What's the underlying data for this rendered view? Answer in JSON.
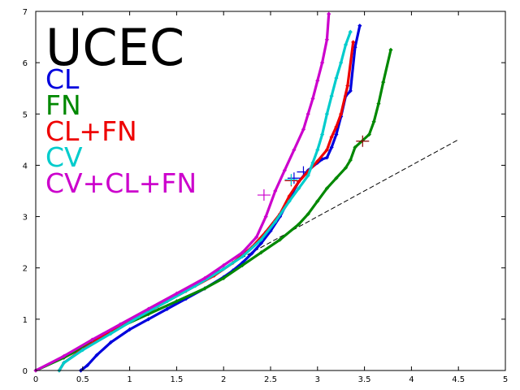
{
  "chart_data": {
    "type": "scatter",
    "title": "UCEC",
    "xlabel": "",
    "ylabel": "",
    "xlim": [
      0,
      5
    ],
    "ylim": [
      0,
      7
    ],
    "grid": false,
    "legend_position": "top-left",
    "x_ticks": [
      "0",
      "0.5",
      "1",
      "1.5",
      "2",
      "2.5",
      "3",
      "3.5",
      "4",
      "4.5",
      "5"
    ],
    "y_ticks": [
      "0",
      "1",
      "2",
      "3",
      "4",
      "5",
      "6",
      "7"
    ],
    "reference_line": {
      "x": [
        0,
        4.5
      ],
      "y": [
        0,
        4.5
      ],
      "color": "#000000",
      "style": "dashed"
    },
    "series": [
      {
        "name": "CL",
        "color": "#0000dd",
        "points": [
          [
            0.48,
            0
          ],
          [
            0.55,
            0.1
          ],
          [
            0.65,
            0.3
          ],
          [
            0.8,
            0.55
          ],
          [
            1.0,
            0.8
          ],
          [
            1.2,
            1.0
          ],
          [
            1.4,
            1.2
          ],
          [
            1.6,
            1.4
          ],
          [
            1.8,
            1.6
          ],
          [
            2.0,
            1.82
          ],
          [
            2.1,
            1.95
          ],
          [
            2.2,
            2.1
          ],
          [
            2.3,
            2.28
          ],
          [
            2.4,
            2.48
          ],
          [
            2.5,
            2.72
          ],
          [
            2.6,
            3.0
          ],
          [
            2.7,
            3.35
          ],
          [
            2.8,
            3.68
          ],
          [
            2.9,
            3.9
          ],
          [
            3.0,
            4.05
          ],
          [
            3.05,
            4.12
          ],
          [
            3.1,
            4.15
          ],
          [
            3.15,
            4.35
          ],
          [
            3.2,
            4.6
          ],
          [
            3.25,
            4.95
          ],
          [
            3.3,
            5.35
          ],
          [
            3.35,
            5.45
          ],
          [
            3.4,
            6.3
          ],
          [
            3.45,
            6.72
          ]
        ],
        "markers": [
          [
            2.75,
            3.75
          ],
          [
            2.85,
            3.87
          ]
        ]
      },
      {
        "name": "FN",
        "color": "#008800",
        "points": [
          [
            0,
            0
          ],
          [
            0.3,
            0.25
          ],
          [
            0.6,
            0.55
          ],
          [
            0.9,
            0.85
          ],
          [
            1.2,
            1.1
          ],
          [
            1.5,
            1.35
          ],
          [
            1.8,
            1.6
          ],
          [
            2.0,
            1.8
          ],
          [
            2.2,
            2.05
          ],
          [
            2.4,
            2.3
          ],
          [
            2.6,
            2.55
          ],
          [
            2.8,
            2.85
          ],
          [
            2.9,
            3.05
          ],
          [
            3.0,
            3.3
          ],
          [
            3.1,
            3.55
          ],
          [
            3.2,
            3.75
          ],
          [
            3.3,
            3.95
          ],
          [
            3.35,
            4.1
          ],
          [
            3.4,
            4.35
          ],
          [
            3.55,
            4.6
          ],
          [
            3.6,
            4.85
          ],
          [
            3.65,
            5.2
          ],
          [
            3.7,
            5.62
          ],
          [
            3.78,
            6.25
          ]
        ],
        "markers": [
          [
            3.48,
            4.47
          ]
        ]
      },
      {
        "name": "CL+FN",
        "color": "#ee0000",
        "points": [
          [
            0.25,
            0
          ],
          [
            0.3,
            0.15
          ],
          [
            0.45,
            0.35
          ],
          [
            0.7,
            0.65
          ],
          [
            1.0,
            0.95
          ],
          [
            1.3,
            1.25
          ],
          [
            1.6,
            1.55
          ],
          [
            1.9,
            1.85
          ],
          [
            2.1,
            2.1
          ],
          [
            2.3,
            2.4
          ],
          [
            2.45,
            2.7
          ],
          [
            2.6,
            3.05
          ],
          [
            2.7,
            3.4
          ],
          [
            2.8,
            3.68
          ],
          [
            2.9,
            3.88
          ],
          [
            3.0,
            4.08
          ],
          [
            3.1,
            4.3
          ],
          [
            3.15,
            4.55
          ],
          [
            3.2,
            4.75
          ],
          [
            3.25,
            5.0
          ],
          [
            3.32,
            5.55
          ],
          [
            3.38,
            6.4
          ]
        ],
        "markers": [
          [
            2.72,
            3.7
          ]
        ]
      },
      {
        "name": "CV",
        "color": "#00cccc",
        "points": [
          [
            0.25,
            0
          ],
          [
            0.3,
            0.15
          ],
          [
            0.5,
            0.4
          ],
          [
            0.8,
            0.72
          ],
          [
            1.1,
            1.05
          ],
          [
            1.4,
            1.35
          ],
          [
            1.7,
            1.65
          ],
          [
            2.0,
            1.98
          ],
          [
            2.2,
            2.22
          ],
          [
            2.4,
            2.55
          ],
          [
            2.55,
            2.9
          ],
          [
            2.7,
            3.3
          ],
          [
            2.8,
            3.55
          ],
          [
            2.9,
            3.8
          ],
          [
            2.95,
            4.05
          ],
          [
            3.0,
            4.3
          ],
          [
            3.05,
            4.6
          ],
          [
            3.1,
            5.0
          ],
          [
            3.15,
            5.35
          ],
          [
            3.2,
            5.7
          ],
          [
            3.25,
            6.0
          ],
          [
            3.3,
            6.35
          ],
          [
            3.35,
            6.6
          ]
        ],
        "markers": [
          [
            2.72,
            3.72
          ]
        ]
      },
      {
        "name": "CV+CL+FN",
        "color": "#cc00cc",
        "points": [
          [
            0,
            0
          ],
          [
            0.3,
            0.28
          ],
          [
            0.6,
            0.6
          ],
          [
            0.9,
            0.9
          ],
          [
            1.2,
            1.2
          ],
          [
            1.5,
            1.5
          ],
          [
            1.8,
            1.8
          ],
          [
            2.0,
            2.05
          ],
          [
            2.2,
            2.3
          ],
          [
            2.35,
            2.6
          ],
          [
            2.45,
            3.0
          ],
          [
            2.55,
            3.5
          ],
          [
            2.65,
            3.9
          ],
          [
            2.75,
            4.3
          ],
          [
            2.85,
            4.7
          ],
          [
            2.9,
            5.0
          ],
          [
            2.95,
            5.3
          ],
          [
            3.0,
            5.65
          ],
          [
            3.05,
            6.0
          ],
          [
            3.1,
            6.45
          ],
          [
            3.12,
            6.95
          ]
        ],
        "markers": [
          [
            2.43,
            3.42
          ]
        ]
      }
    ]
  }
}
